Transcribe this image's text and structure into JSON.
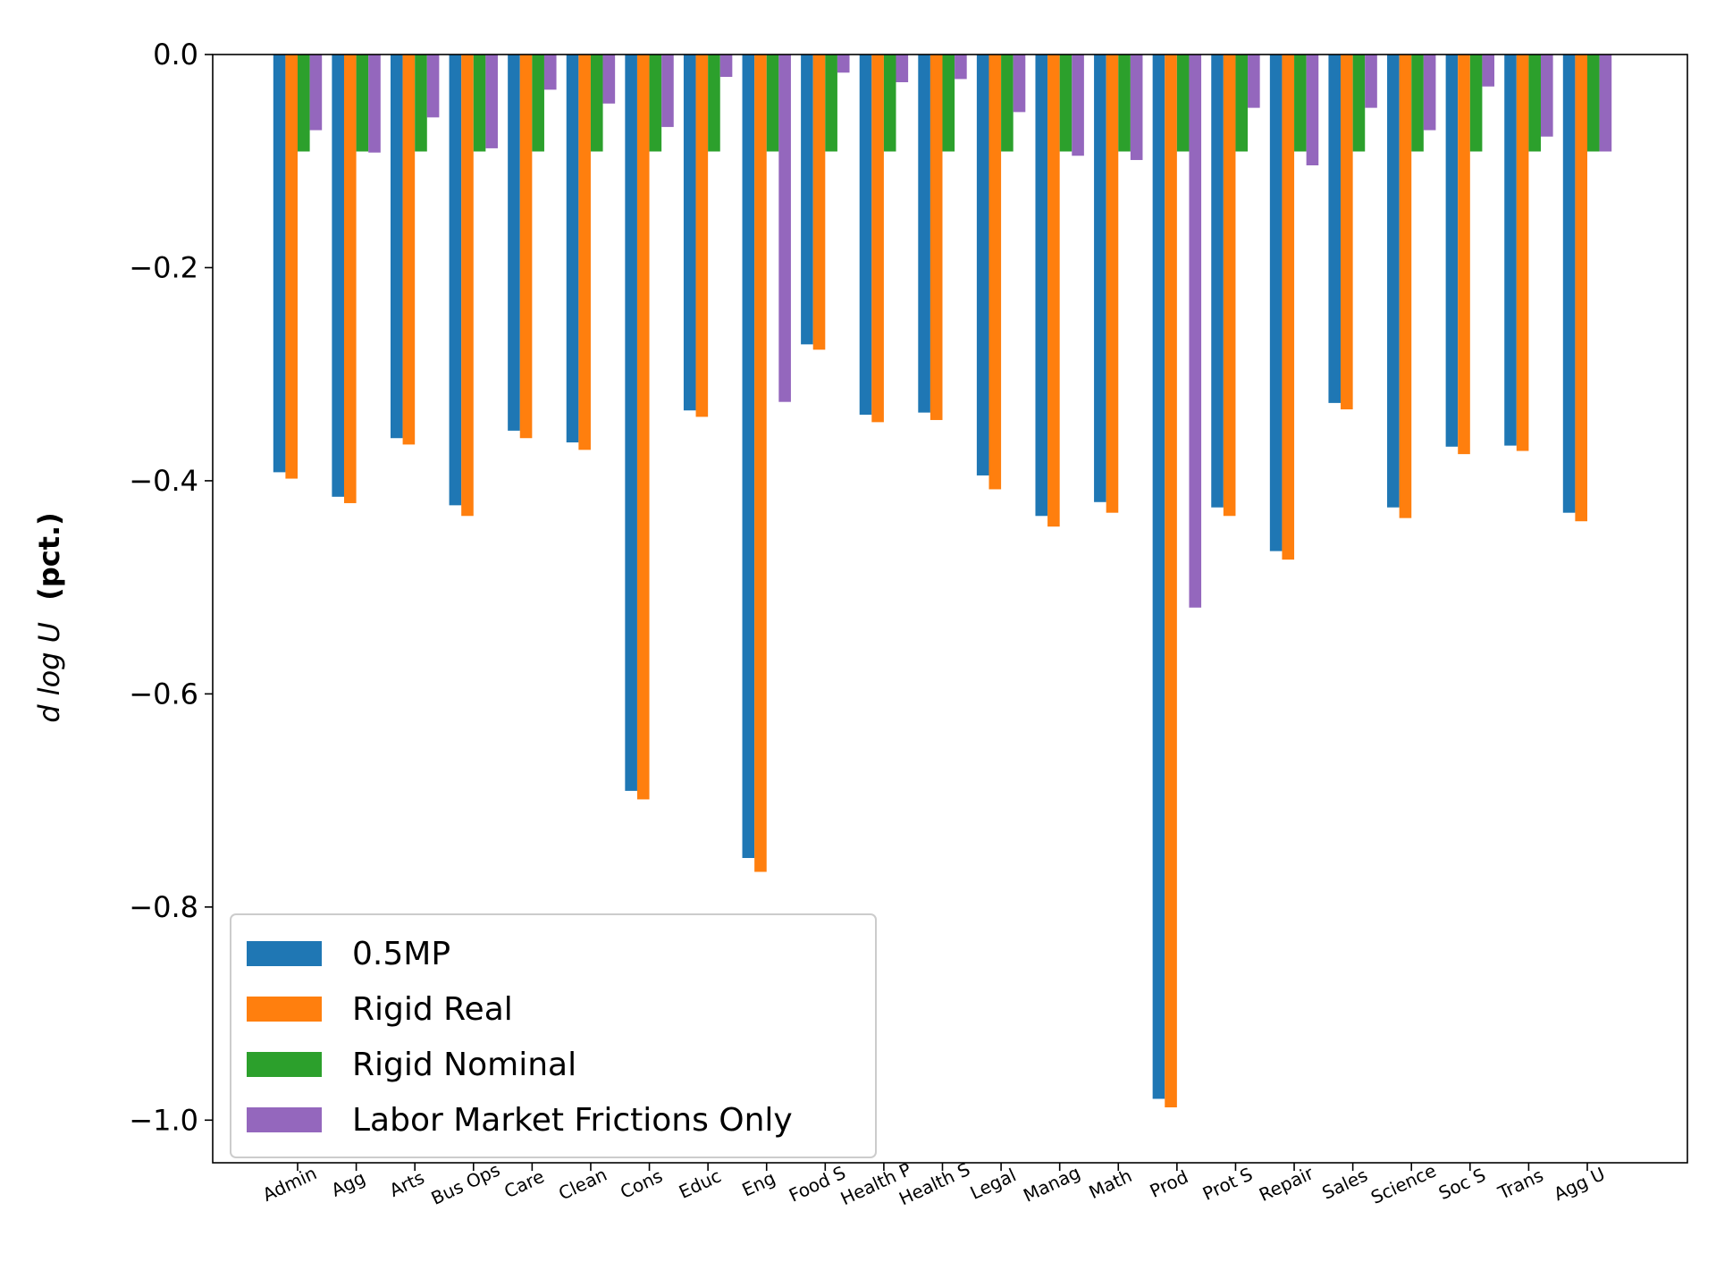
{
  "chart_data": {
    "type": "bar",
    "title": "",
    "xlabel": "",
    "ylabel_math": "d log U",
    "ylabel_unit": "(pct.)",
    "ylim": [
      -1.04,
      0.0
    ],
    "yticks": [
      0.0,
      -0.2,
      -0.4,
      -0.6,
      -0.8,
      -1.0
    ],
    "ytick_labels": [
      "0.0",
      "−0.2",
      "−0.4",
      "−0.6",
      "−0.8",
      "−1.0"
    ],
    "legend_position": "lower-left",
    "grid": false,
    "categories": [
      "Admin",
      "Agg",
      "Arts",
      "Bus Ops",
      "Care",
      "Clean",
      "Cons",
      "Educ",
      "Eng",
      "Food S",
      "Health P",
      "Health S",
      "Legal",
      "Manag",
      "Math",
      "Prod",
      "Prot S",
      "Repair",
      "Sales",
      "Science",
      "Soc S",
      "Trans",
      "Agg U"
    ],
    "series": [
      {
        "name": "0.5MP",
        "color": "#1f77b4",
        "values": [
          -0.392,
          -0.415,
          -0.36,
          -0.423,
          -0.353,
          -0.364,
          -0.691,
          -0.334,
          -0.754,
          -0.272,
          -0.338,
          -0.336,
          -0.395,
          -0.433,
          -0.42,
          -0.98,
          -0.425,
          -0.466,
          -0.327,
          -0.425,
          -0.368,
          -0.367,
          -0.43
        ]
      },
      {
        "name": "Rigid Real",
        "color": "#ff7f0e",
        "values": [
          -0.398,
          -0.421,
          -0.366,
          -0.433,
          -0.36,
          -0.371,
          -0.699,
          -0.34,
          -0.767,
          -0.277,
          -0.345,
          -0.343,
          -0.408,
          -0.443,
          -0.43,
          -0.988,
          -0.433,
          -0.474,
          -0.333,
          -0.435,
          -0.375,
          -0.372,
          -0.438
        ]
      },
      {
        "name": "Rigid Nominal",
        "color": "#2ca02c",
        "values": [
          -0.091,
          -0.091,
          -0.091,
          -0.091,
          -0.091,
          -0.091,
          -0.091,
          -0.091,
          -0.091,
          -0.091,
          -0.091,
          -0.091,
          -0.091,
          -0.091,
          -0.091,
          -0.091,
          -0.091,
          -0.091,
          -0.091,
          -0.091,
          -0.091,
          -0.091,
          -0.091
        ]
      },
      {
        "name": "Labor Market Frictions Only",
        "color": "#9467bd",
        "values": [
          -0.071,
          -0.092,
          -0.059,
          -0.088,
          -0.033,
          -0.046,
          -0.068,
          -0.021,
          -0.326,
          -0.017,
          -0.026,
          -0.023,
          -0.054,
          -0.095,
          -0.099,
          -0.519,
          -0.05,
          -0.104,
          -0.05,
          -0.071,
          -0.03,
          -0.077,
          -0.091
        ]
      }
    ]
  }
}
